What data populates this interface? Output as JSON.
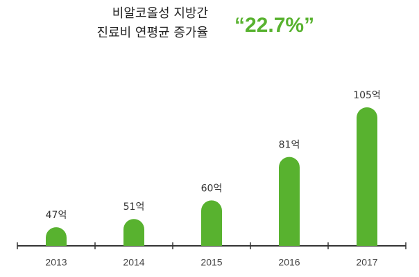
{
  "chart_data": {
    "type": "bar",
    "title": [
      "비알코올성 지방간",
      "진료비 연평균 증가율"
    ],
    "highlight": "“22.7%”",
    "categories": [
      "2013",
      "2014",
      "2015",
      "2016",
      "2017"
    ],
    "values": [
      47,
      51,
      60,
      81,
      105
    ],
    "value_labels": [
      "47억",
      "51억",
      "60억",
      "81억",
      "105억"
    ],
    "color": "#58b22f",
    "ylim": [
      38,
      105
    ]
  }
}
